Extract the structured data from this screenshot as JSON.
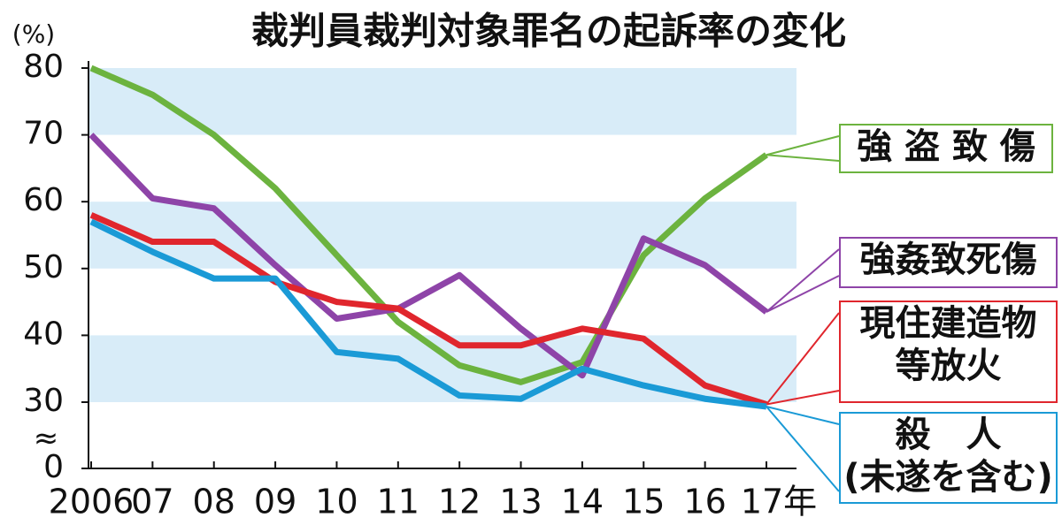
{
  "chart_data": {
    "type": "line",
    "title": "裁判員裁判対象罪名の起訴率の変化",
    "y_unit": "(%)",
    "categories": [
      "2006",
      "07",
      "08",
      "09",
      "10",
      "11",
      "12",
      "13",
      "14",
      "15",
      "16",
      "17年"
    ],
    "series": [
      {
        "name": "強 盗 致 傷",
        "color": "#6cb33f",
        "values": [
          80,
          76,
          70,
          62,
          52,
          42,
          35.5,
          33,
          36,
          52,
          60.5,
          67
        ]
      },
      {
        "name": "強姦致死傷",
        "color": "#8e44a8",
        "values": [
          70,
          60.5,
          59,
          50.5,
          42.5,
          44,
          49,
          41,
          34,
          54.5,
          50.5,
          43.5
        ]
      },
      {
        "name": "現住建造物\n等放火",
        "color": "#e0262d",
        "values": [
          58,
          54,
          54,
          48,
          45,
          44,
          38.5,
          38.5,
          41,
          39.5,
          32.5,
          29
        ]
      },
      {
        "name": "殺　人\n(未遂を含む)",
        "color": "#1a9ad6",
        "values": [
          57,
          52.5,
          48.5,
          48.5,
          37.5,
          36.5,
          31,
          30.5,
          35,
          32.5,
          30.5,
          28
        ]
      }
    ],
    "ylim": [
      0,
      80
    ],
    "yticks": [
      0,
      30,
      40,
      50,
      60,
      70,
      80
    ],
    "y_break": true,
    "bands": true
  }
}
